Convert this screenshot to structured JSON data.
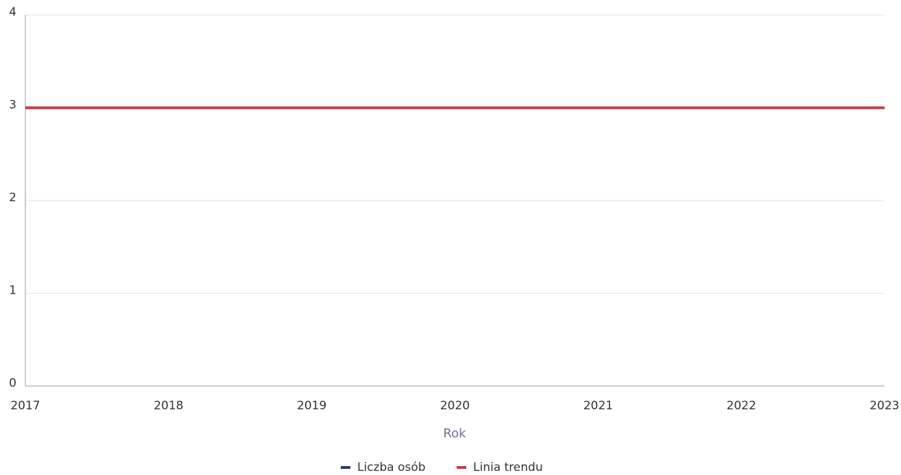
{
  "chart_data": {
    "type": "line",
    "x": [
      2017,
      2018,
      2019,
      2020,
      2021,
      2022,
      2023
    ],
    "xlabel": "Rok",
    "series": [
      {
        "name": "Liczba osób",
        "color": "#1f3f6e",
        "values": [
          3,
          3,
          3,
          3,
          3,
          3,
          3
        ]
      },
      {
        "name": "Linia trendu",
        "color": "#c8393d",
        "values": [
          3,
          3,
          3,
          3,
          3,
          3,
          3
        ]
      }
    ],
    "xlim": [
      2017,
      2023
    ],
    "xticks": [
      2017,
      2018,
      2019,
      2020,
      2021,
      2022,
      2023
    ],
    "ylim": [
      0,
      4
    ],
    "yticks": [
      0,
      1,
      2,
      3,
      4
    ],
    "grid": true,
    "legend": "bottom"
  }
}
